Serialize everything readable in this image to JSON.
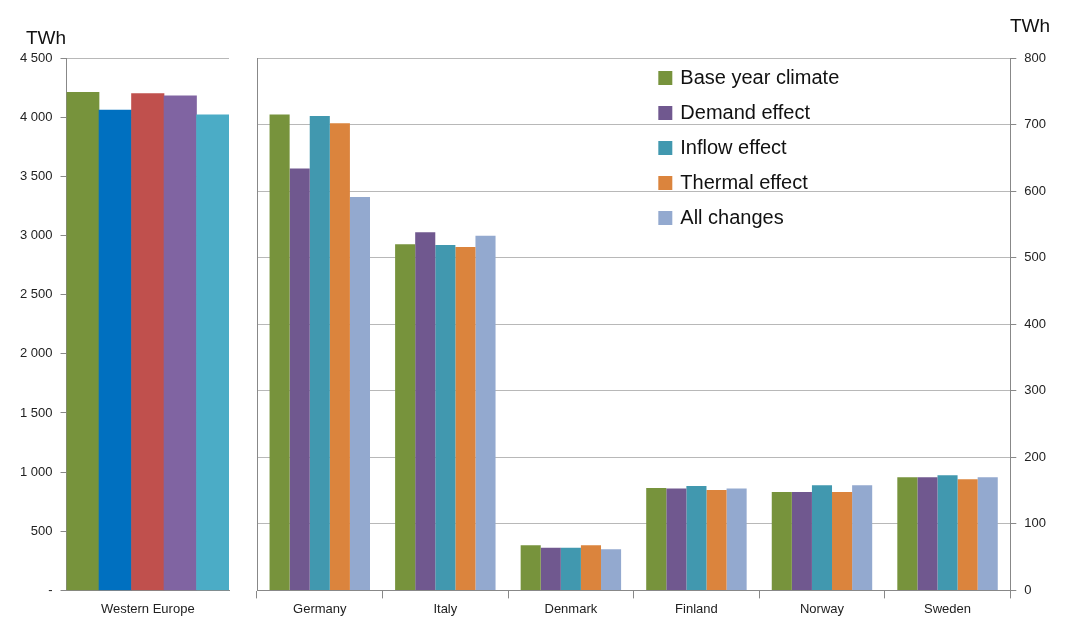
{
  "chart_data": [
    {
      "type": "bar",
      "ylabel": "TWh",
      "categories": [
        null,
        null,
        "Western Europe",
        null,
        null
      ],
      "values": [
        4210,
        4060,
        4200,
        4180,
        4020
      ],
      "colors": [
        "#77933c",
        "#0070c0",
        "#c0504d",
        "#8064a2",
        "#4bacc6"
      ],
      "ylim": [
        0,
        4500
      ],
      "yticks": [
        {
          "value": 0,
          "label": "-"
        },
        {
          "value": 500,
          "label": "500"
        },
        {
          "value": 1000,
          "label": "1 000"
        },
        {
          "value": 1500,
          "label": "1 500"
        },
        {
          "value": 2000,
          "label": "2 000"
        },
        {
          "value": 2500,
          "label": "2 500"
        },
        {
          "value": 3000,
          "label": "3 000"
        },
        {
          "value": 3500,
          "label": "3 500"
        },
        {
          "value": 4000,
          "label": "4 000"
        },
        {
          "value": 4500,
          "label": "4 500"
        }
      ],
      "grid": "y"
    },
    {
      "type": "bar",
      "y2label": "TWh",
      "categories": [
        "Germany",
        "Italy",
        "Denmark",
        "Finland",
        "Norway",
        "Sweden"
      ],
      "series": [
        {
          "name": "Base year climate",
          "color": "#77933c",
          "axis": "y2",
          "values": [
            715,
            520,
            68,
            154,
            148,
            170
          ]
        },
        {
          "name": "Demand effect",
          "color": "#70588f",
          "axis": "y2",
          "values": [
            634,
            538,
            64,
            153,
            148,
            170
          ]
        },
        {
          "name": "Inflow effect",
          "color": "#4198af",
          "axis": "y2",
          "values": [
            713,
            519,
            64,
            157,
            158,
            173
          ]
        },
        {
          "name": "Thermal effect",
          "color": "#db843d",
          "axis": "y2",
          "values": [
            702,
            516,
            68,
            151,
            148,
            167
          ]
        },
        {
          "name": "All changes",
          "color": "#93a9cf",
          "axis": "y2",
          "values": [
            591,
            533,
            62,
            153,
            158,
            170
          ]
        }
      ],
      "y2lim": [
        0,
        800
      ],
      "y2ticks": [
        0,
        100,
        200,
        300,
        400,
        500,
        600,
        700,
        800
      ],
      "grid": "y",
      "legend": "top right"
    }
  ]
}
